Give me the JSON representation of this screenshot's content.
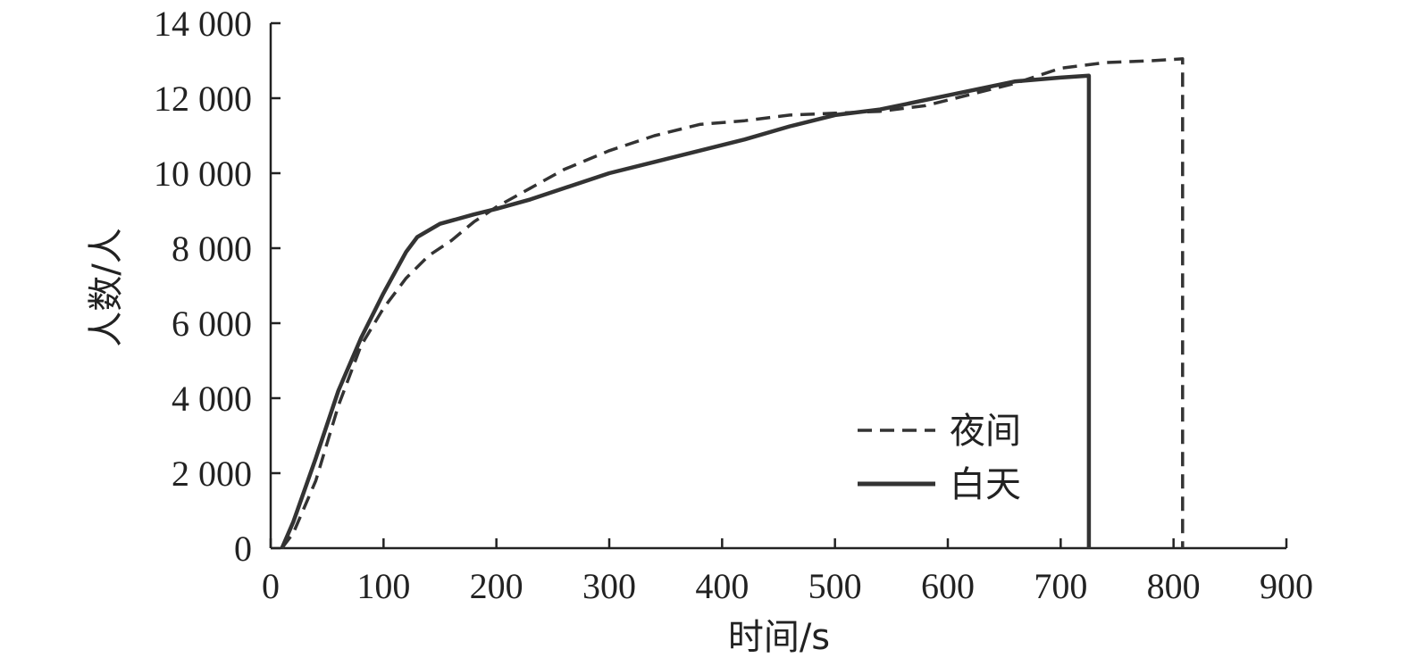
{
  "chart_data": {
    "type": "line",
    "title": "",
    "xlabel": "时间/s",
    "ylabel": "人数/人",
    "xlim": [
      0,
      900
    ],
    "ylim": [
      0,
      14000
    ],
    "x_ticks": [
      0,
      100,
      200,
      300,
      400,
      500,
      600,
      700,
      800,
      900
    ],
    "x_tick_labels": [
      "0",
      "100",
      "200",
      "300",
      "400",
      "500",
      "600",
      "700",
      "800",
      "900"
    ],
    "y_ticks": [
      0,
      2000,
      4000,
      6000,
      8000,
      10000,
      12000,
      14000
    ],
    "y_tick_labels": [
      "0",
      "2 000",
      "4 000",
      "6 000",
      "8 000",
      "10 000",
      "12 000",
      "14 000"
    ],
    "grid": false,
    "legend_position": "bottom-right",
    "series": [
      {
        "name": "夜间",
        "style": "dashed",
        "color": "#333333",
        "x": [
          10,
          20,
          40,
          60,
          80,
          100,
          120,
          140,
          160,
          180,
          200,
          230,
          260,
          300,
          340,
          380,
          420,
          460,
          500,
          540,
          580,
          620,
          660,
          700,
          740,
          780,
          808,
          808
        ],
        "y": [
          0,
          400,
          1800,
          3800,
          5400,
          6400,
          7200,
          7800,
          8200,
          8700,
          9100,
          9600,
          10100,
          10600,
          11000,
          11300,
          11400,
          11550,
          11600,
          11650,
          11800,
          12100,
          12400,
          12800,
          12950,
          13000,
          13050,
          0
        ]
      },
      {
        "name": "白天",
        "style": "solid",
        "color": "#333333",
        "x": [
          10,
          20,
          40,
          60,
          80,
          100,
          120,
          130,
          150,
          180,
          200,
          230,
          260,
          300,
          340,
          380,
          420,
          460,
          500,
          540,
          580,
          620,
          660,
          700,
          725,
          725
        ],
        "y": [
          0,
          700,
          2400,
          4200,
          5600,
          6800,
          7900,
          8300,
          8650,
          8900,
          9050,
          9300,
          9600,
          10000,
          10300,
          10600,
          10900,
          11250,
          11550,
          11700,
          11950,
          12200,
          12450,
          12550,
          12600,
          0
        ]
      }
    ]
  }
}
